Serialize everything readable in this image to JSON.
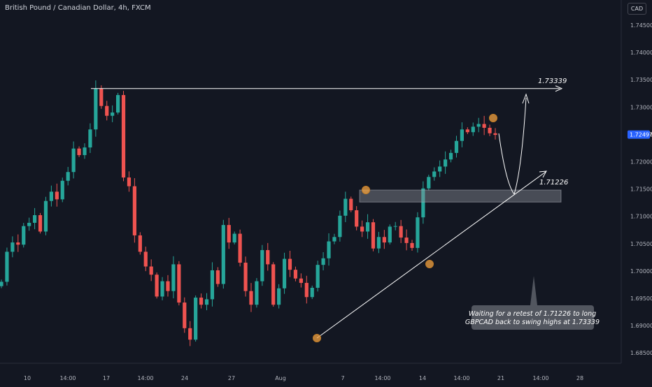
{
  "header": {
    "symbol_title": "British Pound / Canadian Dollar, 4h, FXCM",
    "currency_label": "CAD"
  },
  "colors": {
    "background": "#131722",
    "up_candle": "#26a69a",
    "down_candle": "#ef5350",
    "price_badge": "#2962ff",
    "marker": "#f4a340",
    "drawing": "#ffffff",
    "zone": "#8a8d96"
  },
  "chart_data": {
    "type": "candlestick",
    "instrument": "GBPCAD",
    "timeframe": "4h",
    "y_ticks": [
      "1.74500",
      "1.74000",
      "1.73500",
      "1.73000",
      "1.72500",
      "1.72000",
      "1.71500",
      "1.71000",
      "1.70500",
      "1.70000",
      "1.69500",
      "1.69000",
      "1.68500"
    ],
    "x_ticks": [
      "10",
      "14:00",
      "17",
      "14:00",
      "24",
      "27",
      "Aug",
      "7",
      "14:00",
      "14",
      "14:00",
      "21",
      "14:00",
      "28"
    ],
    "last_price": "1.72497",
    "resistance_label": "1.73339",
    "support_label": "1.71226",
    "annotation": "Waiting for a retest of 1.71226 to long GBPCAD back to swing highs at 1.73339",
    "price_levels": {
      "swing_high": 1.73339,
      "retest_zone_top": 1.7148,
      "retest_zone_bottom": 1.7126
    },
    "closes": [
      1.698,
      1.7035,
      1.7052,
      1.7048,
      1.7082,
      1.7088,
      1.7102,
      1.7072,
      1.7128,
      1.7145,
      1.7131,
      1.7165,
      1.7181,
      1.7224,
      1.7212,
      1.7226,
      1.7259,
      1.7334,
      1.7302,
      1.7284,
      1.729,
      1.7322,
      1.7171,
      1.7155,
      1.7065,
      1.7035,
      1.7008,
      1.6993,
      1.6953,
      1.6981,
      1.6963,
      1.7012,
      1.6942,
      1.6895,
      1.6874,
      1.6951,
      1.6938,
      1.6948,
      1.7001,
      1.6976,
      1.7084,
      1.7052,
      1.7068,
      1.7015,
      1.6963,
      1.6938,
      1.6981,
      1.7038,
      1.7012,
      1.6938,
      1.6968,
      1.7022,
      1.7002,
      1.6986,
      1.6978,
      1.6952,
      1.6969,
      1.7011,
      1.7023,
      1.7054,
      1.7062,
      1.7101,
      1.7132,
      1.7111,
      1.7081,
      1.7072,
      1.7089,
      1.7041,
      1.7062,
      1.7052,
      1.7081,
      1.7082,
      1.7061,
      1.7051,
      1.7042,
      1.7098,
      1.7151,
      1.7172,
      1.7182,
      1.7191,
      1.7204,
      1.7216,
      1.7238,
      1.7259,
      1.7254,
      1.7264,
      1.7269,
      1.7262,
      1.7252,
      1.7249
    ]
  }
}
